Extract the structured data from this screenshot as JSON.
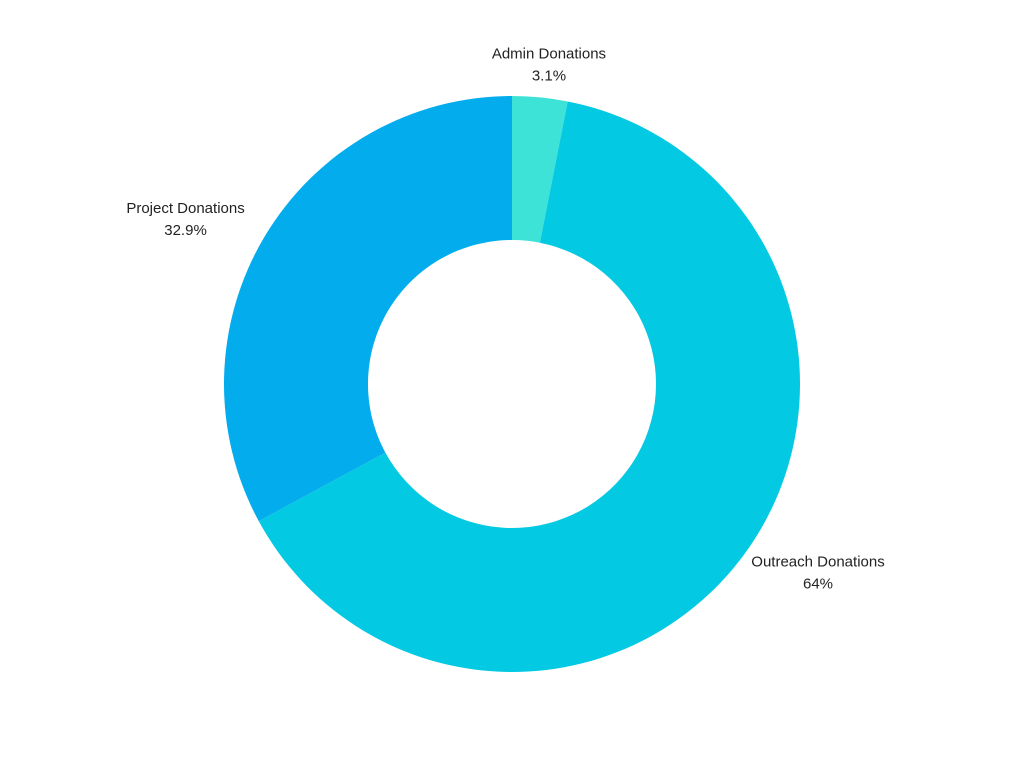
{
  "chart_data": {
    "type": "donut",
    "categories": [
      "Admin Donations",
      "Outreach Donations",
      "Project Donations"
    ],
    "values": [
      3.1,
      64,
      32.9
    ],
    "value_labels": [
      "3.1%",
      "64%",
      "32.9%"
    ],
    "colors": [
      "#3de3d6",
      "#03c9e3",
      "#02aced"
    ]
  }
}
